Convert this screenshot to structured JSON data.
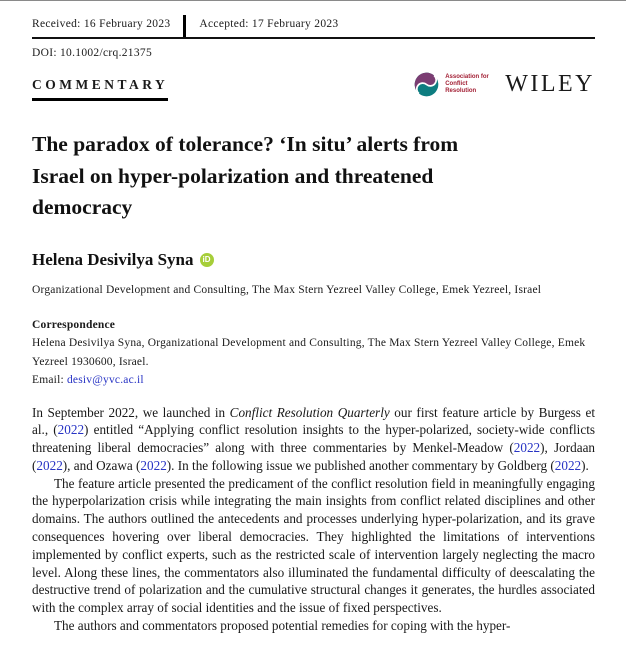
{
  "header": {
    "received": "Received: 16 February 2023",
    "accepted": "Accepted: 17 February 2023",
    "doi": "DOI: 10.1002/crq.21375",
    "article_type": "COMMENTARY",
    "acr_logo": {
      "line1": "Association for",
      "line2": "Conflict Resolution",
      "teal": "#0d7d80",
      "purple": "#7b3d72",
      "text_color": "#a32035"
    },
    "publisher": "WILEY"
  },
  "article": {
    "title_lines": [
      "The paradox of tolerance? ‘In situ’ alerts from",
      "Israel on hyper-polarization and threatened",
      "democracy"
    ],
    "author": "Helena Desivilya Syna",
    "orcid_label": "iD",
    "orcid_color": "#a6ce39",
    "affiliation": "Organizational Development and Consulting, The Max Stern Yezreel Valley College, Emek Yezreel, Israel",
    "correspondence": {
      "heading": "Correspondence",
      "text": "Helena Desivilya Syna, Organizational Development and Consulting, The Max Stern Yezreel Valley College, Emek Yezreel 1930600, Israel.",
      "email_label": "Email: ",
      "email": "desiv@yvc.ac.il"
    }
  },
  "body": {
    "link_color": "#2733c4",
    "paragraphs": [
      {
        "indent": false,
        "segments": [
          {
            "t": "text",
            "s": "In September 2022, we launched in "
          },
          {
            "t": "italic",
            "s": "Conflict Resolution Quarterly"
          },
          {
            "t": "text",
            "s": " our first feature article by Burgess et al., ("
          },
          {
            "t": "link",
            "s": "2022"
          },
          {
            "t": "text",
            "s": ") entitled “Applying conflict resolution insights to the hyper-polarized, society-wide conflicts threatening liberal democracies” along with three commentaries by Menkel-Meadow ("
          },
          {
            "t": "link",
            "s": "2022"
          },
          {
            "t": "text",
            "s": "), Jordaan ("
          },
          {
            "t": "link",
            "s": "2022"
          },
          {
            "t": "text",
            "s": "), and Ozawa ("
          },
          {
            "t": "link",
            "s": "2022"
          },
          {
            "t": "text",
            "s": "). In the following issue we published another commentary by Goldberg ("
          },
          {
            "t": "link",
            "s": "2022"
          },
          {
            "t": "text",
            "s": ")."
          }
        ]
      },
      {
        "indent": true,
        "segments": [
          {
            "t": "text",
            "s": "The feature article presented the predicament of the conflict resolution field in meaningfully engaging the hyperpolarization crisis while integrating the main insights from conflict related disciplines and other domains. The authors outlined the antecedents and processes underlying hyper-polarization, and its grave consequences hovering over liberal democracies. They highlighted the limitations of interventions implemented by conflict experts, such as the restricted scale of intervention largely neglecting the macro level. Along these lines, the commentators also illuminated the fundamental difficulty of deescalating the destructive trend of polarization and the cumulative structural changes it generates, the hurdles associated with the complex array of social identities and the issue of fixed perspectives."
          }
        ]
      },
      {
        "indent": true,
        "segments": [
          {
            "t": "text",
            "s": "The authors and commentators proposed potential remedies for coping with the hyper-"
          }
        ]
      }
    ]
  }
}
